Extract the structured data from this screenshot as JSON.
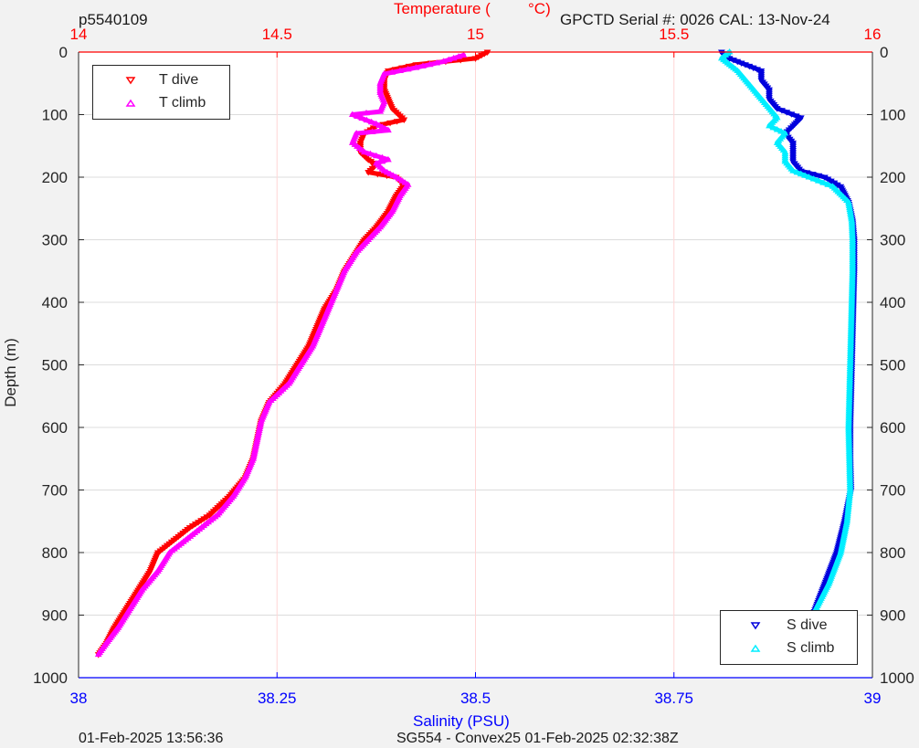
{
  "header": {
    "profile_id": "p5540109",
    "serial_cal": "GPCTD Serial #: 0026 CAL: 13-Nov-24"
  },
  "footer": {
    "left": "01-Feb-2025 13:56:36",
    "center": "SG554 - Convex25 01-Feb-2025 02:32:38Z"
  },
  "colors": {
    "t_dive": "#ff0000",
    "t_climb": "#ff00ff",
    "s_dive": "#0000dd",
    "s_climb": "#00eeff",
    "temp_axis": "#ff0000",
    "sal_axis": "#0000ff",
    "grid": "#dcdcdc"
  },
  "chart_data": {
    "type": "line",
    "ylabel": "Depth (m)",
    "y_reversed": true,
    "ylim": [
      0,
      1000
    ],
    "yticks": [
      0,
      100,
      200,
      300,
      400,
      500,
      600,
      700,
      800,
      900,
      1000
    ],
    "temperature_axis": {
      "label_left": "Temperature (",
      "label_right": "°C)",
      "position": "top",
      "xlim": [
        14,
        16
      ],
      "ticks": [
        "14",
        "14.5",
        "15",
        "15.5",
        "16"
      ]
    },
    "salinity_axis": {
      "label": "Salinity (PSU)",
      "position": "bottom",
      "xlim": [
        38,
        39
      ],
      "ticks": [
        "38",
        "38.25",
        "38.5",
        "38.75",
        "39"
      ]
    },
    "legend_temperature": {
      "placement": "top-left",
      "entries": [
        "T dive",
        "T climb"
      ]
    },
    "legend_salinity": {
      "placement": "bottom-right",
      "entries": [
        "S dive",
        "S climb"
      ]
    },
    "series": [
      {
        "name": "T dive",
        "axis": "temperature",
        "marker": "triangle-down",
        "points": [
          [
            15.03,
            0
          ],
          [
            15.0,
            10
          ],
          [
            14.85,
            20
          ],
          [
            14.78,
            30
          ],
          [
            14.77,
            45
          ],
          [
            14.77,
            60
          ],
          [
            14.78,
            75
          ],
          [
            14.79,
            90
          ],
          [
            14.82,
            108
          ],
          [
            14.75,
            118
          ],
          [
            14.72,
            130
          ],
          [
            14.71,
            145
          ],
          [
            14.71,
            160
          ],
          [
            14.73,
            172
          ],
          [
            14.75,
            180
          ],
          [
            14.73,
            192
          ],
          [
            14.8,
            200
          ],
          [
            14.82,
            212
          ],
          [
            14.8,
            230
          ],
          [
            14.78,
            255
          ],
          [
            14.75,
            280
          ],
          [
            14.72,
            300
          ],
          [
            14.7,
            320
          ],
          [
            14.67,
            350
          ],
          [
            14.65,
            380
          ],
          [
            14.62,
            410
          ],
          [
            14.6,
            440
          ],
          [
            14.58,
            470
          ],
          [
            14.55,
            500
          ],
          [
            14.52,
            530
          ],
          [
            14.48,
            560
          ],
          [
            14.46,
            590
          ],
          [
            14.45,
            620
          ],
          [
            14.44,
            650
          ],
          [
            14.42,
            680
          ],
          [
            14.38,
            710
          ],
          [
            14.33,
            740
          ],
          [
            14.28,
            760
          ],
          [
            14.24,
            780
          ],
          [
            14.2,
            800
          ],
          [
            14.18,
            830
          ],
          [
            14.15,
            860
          ],
          [
            14.12,
            890
          ],
          [
            14.09,
            920
          ],
          [
            14.07,
            945
          ],
          [
            14.05,
            963
          ]
        ]
      },
      {
        "name": "T climb",
        "axis": "temperature",
        "marker": "triangle-up",
        "points": [
          [
            14.05,
            963
          ],
          [
            14.07,
            945
          ],
          [
            14.1,
            920
          ],
          [
            14.13,
            890
          ],
          [
            14.16,
            860
          ],
          [
            14.2,
            830
          ],
          [
            14.23,
            800
          ],
          [
            14.27,
            780
          ],
          [
            14.31,
            760
          ],
          [
            14.35,
            740
          ],
          [
            14.39,
            710
          ],
          [
            14.42,
            680
          ],
          [
            14.44,
            650
          ],
          [
            14.45,
            620
          ],
          [
            14.46,
            590
          ],
          [
            14.48,
            560
          ],
          [
            14.53,
            530
          ],
          [
            14.56,
            500
          ],
          [
            14.59,
            470
          ],
          [
            14.61,
            440
          ],
          [
            14.63,
            410
          ],
          [
            14.65,
            380
          ],
          [
            14.67,
            350
          ],
          [
            14.7,
            320
          ],
          [
            14.73,
            300
          ],
          [
            14.76,
            280
          ],
          [
            14.79,
            255
          ],
          [
            14.81,
            230
          ],
          [
            14.83,
            212
          ],
          [
            14.8,
            200
          ],
          [
            14.77,
            190
          ],
          [
            14.75,
            178
          ],
          [
            14.78,
            172
          ],
          [
            14.72,
            160
          ],
          [
            14.69,
            145
          ],
          [
            14.7,
            130
          ],
          [
            14.78,
            125
          ],
          [
            14.75,
            115
          ],
          [
            14.69,
            100
          ],
          [
            14.76,
            95
          ],
          [
            14.77,
            80
          ],
          [
            14.76,
            65
          ],
          [
            14.76,
            50
          ],
          [
            14.77,
            35
          ],
          [
            14.85,
            25
          ],
          [
            14.92,
            15
          ],
          [
            14.97,
            5
          ]
        ]
      },
      {
        "name": "S dive",
        "axis": "salinity",
        "marker": "triangle-down",
        "points": [
          [
            38.81,
            0
          ],
          [
            38.82,
            10
          ],
          [
            38.84,
            20
          ],
          [
            38.86,
            30
          ],
          [
            38.86,
            45
          ],
          [
            38.87,
            60
          ],
          [
            38.87,
            75
          ],
          [
            38.88,
            90
          ],
          [
            38.91,
            105
          ],
          [
            38.9,
            118
          ],
          [
            38.89,
            130
          ],
          [
            38.9,
            145
          ],
          [
            38.9,
            160
          ],
          [
            38.9,
            175
          ],
          [
            38.91,
            190
          ],
          [
            38.94,
            200
          ],
          [
            38.96,
            215
          ],
          [
            38.97,
            240
          ],
          [
            38.975,
            270
          ],
          [
            38.977,
            300
          ],
          [
            38.977,
            350
          ],
          [
            38.976,
            400
          ],
          [
            38.975,
            450
          ],
          [
            38.974,
            500
          ],
          [
            38.973,
            550
          ],
          [
            38.972,
            600
          ],
          [
            38.972,
            650
          ],
          [
            38.973,
            700
          ],
          [
            38.965,
            750
          ],
          [
            38.955,
            800
          ],
          [
            38.94,
            850
          ],
          [
            38.925,
            900
          ],
          [
            38.915,
            930
          ],
          [
            38.91,
            963
          ]
        ]
      },
      {
        "name": "S climb",
        "axis": "salinity",
        "marker": "triangle-up",
        "points": [
          [
            38.91,
            963
          ],
          [
            38.915,
            930
          ],
          [
            38.925,
            900
          ],
          [
            38.945,
            850
          ],
          [
            38.96,
            800
          ],
          [
            38.968,
            750
          ],
          [
            38.972,
            700
          ],
          [
            38.971,
            650
          ],
          [
            38.97,
            600
          ],
          [
            38.971,
            550
          ],
          [
            38.972,
            500
          ],
          [
            38.973,
            450
          ],
          [
            38.974,
            400
          ],
          [
            38.975,
            350
          ],
          [
            38.975,
            300
          ],
          [
            38.974,
            270
          ],
          [
            38.97,
            240
          ],
          [
            38.95,
            215
          ],
          [
            38.92,
            200
          ],
          [
            38.9,
            190
          ],
          [
            38.89,
            175
          ],
          [
            38.89,
            160
          ],
          [
            38.88,
            145
          ],
          [
            38.89,
            130
          ],
          [
            38.87,
            118
          ],
          [
            38.88,
            105
          ],
          [
            38.87,
            90
          ],
          [
            38.86,
            75
          ],
          [
            38.85,
            60
          ],
          [
            38.84,
            45
          ],
          [
            38.83,
            30
          ],
          [
            38.82,
            20
          ],
          [
            38.81,
            10
          ],
          [
            38.82,
            0
          ]
        ]
      }
    ]
  }
}
